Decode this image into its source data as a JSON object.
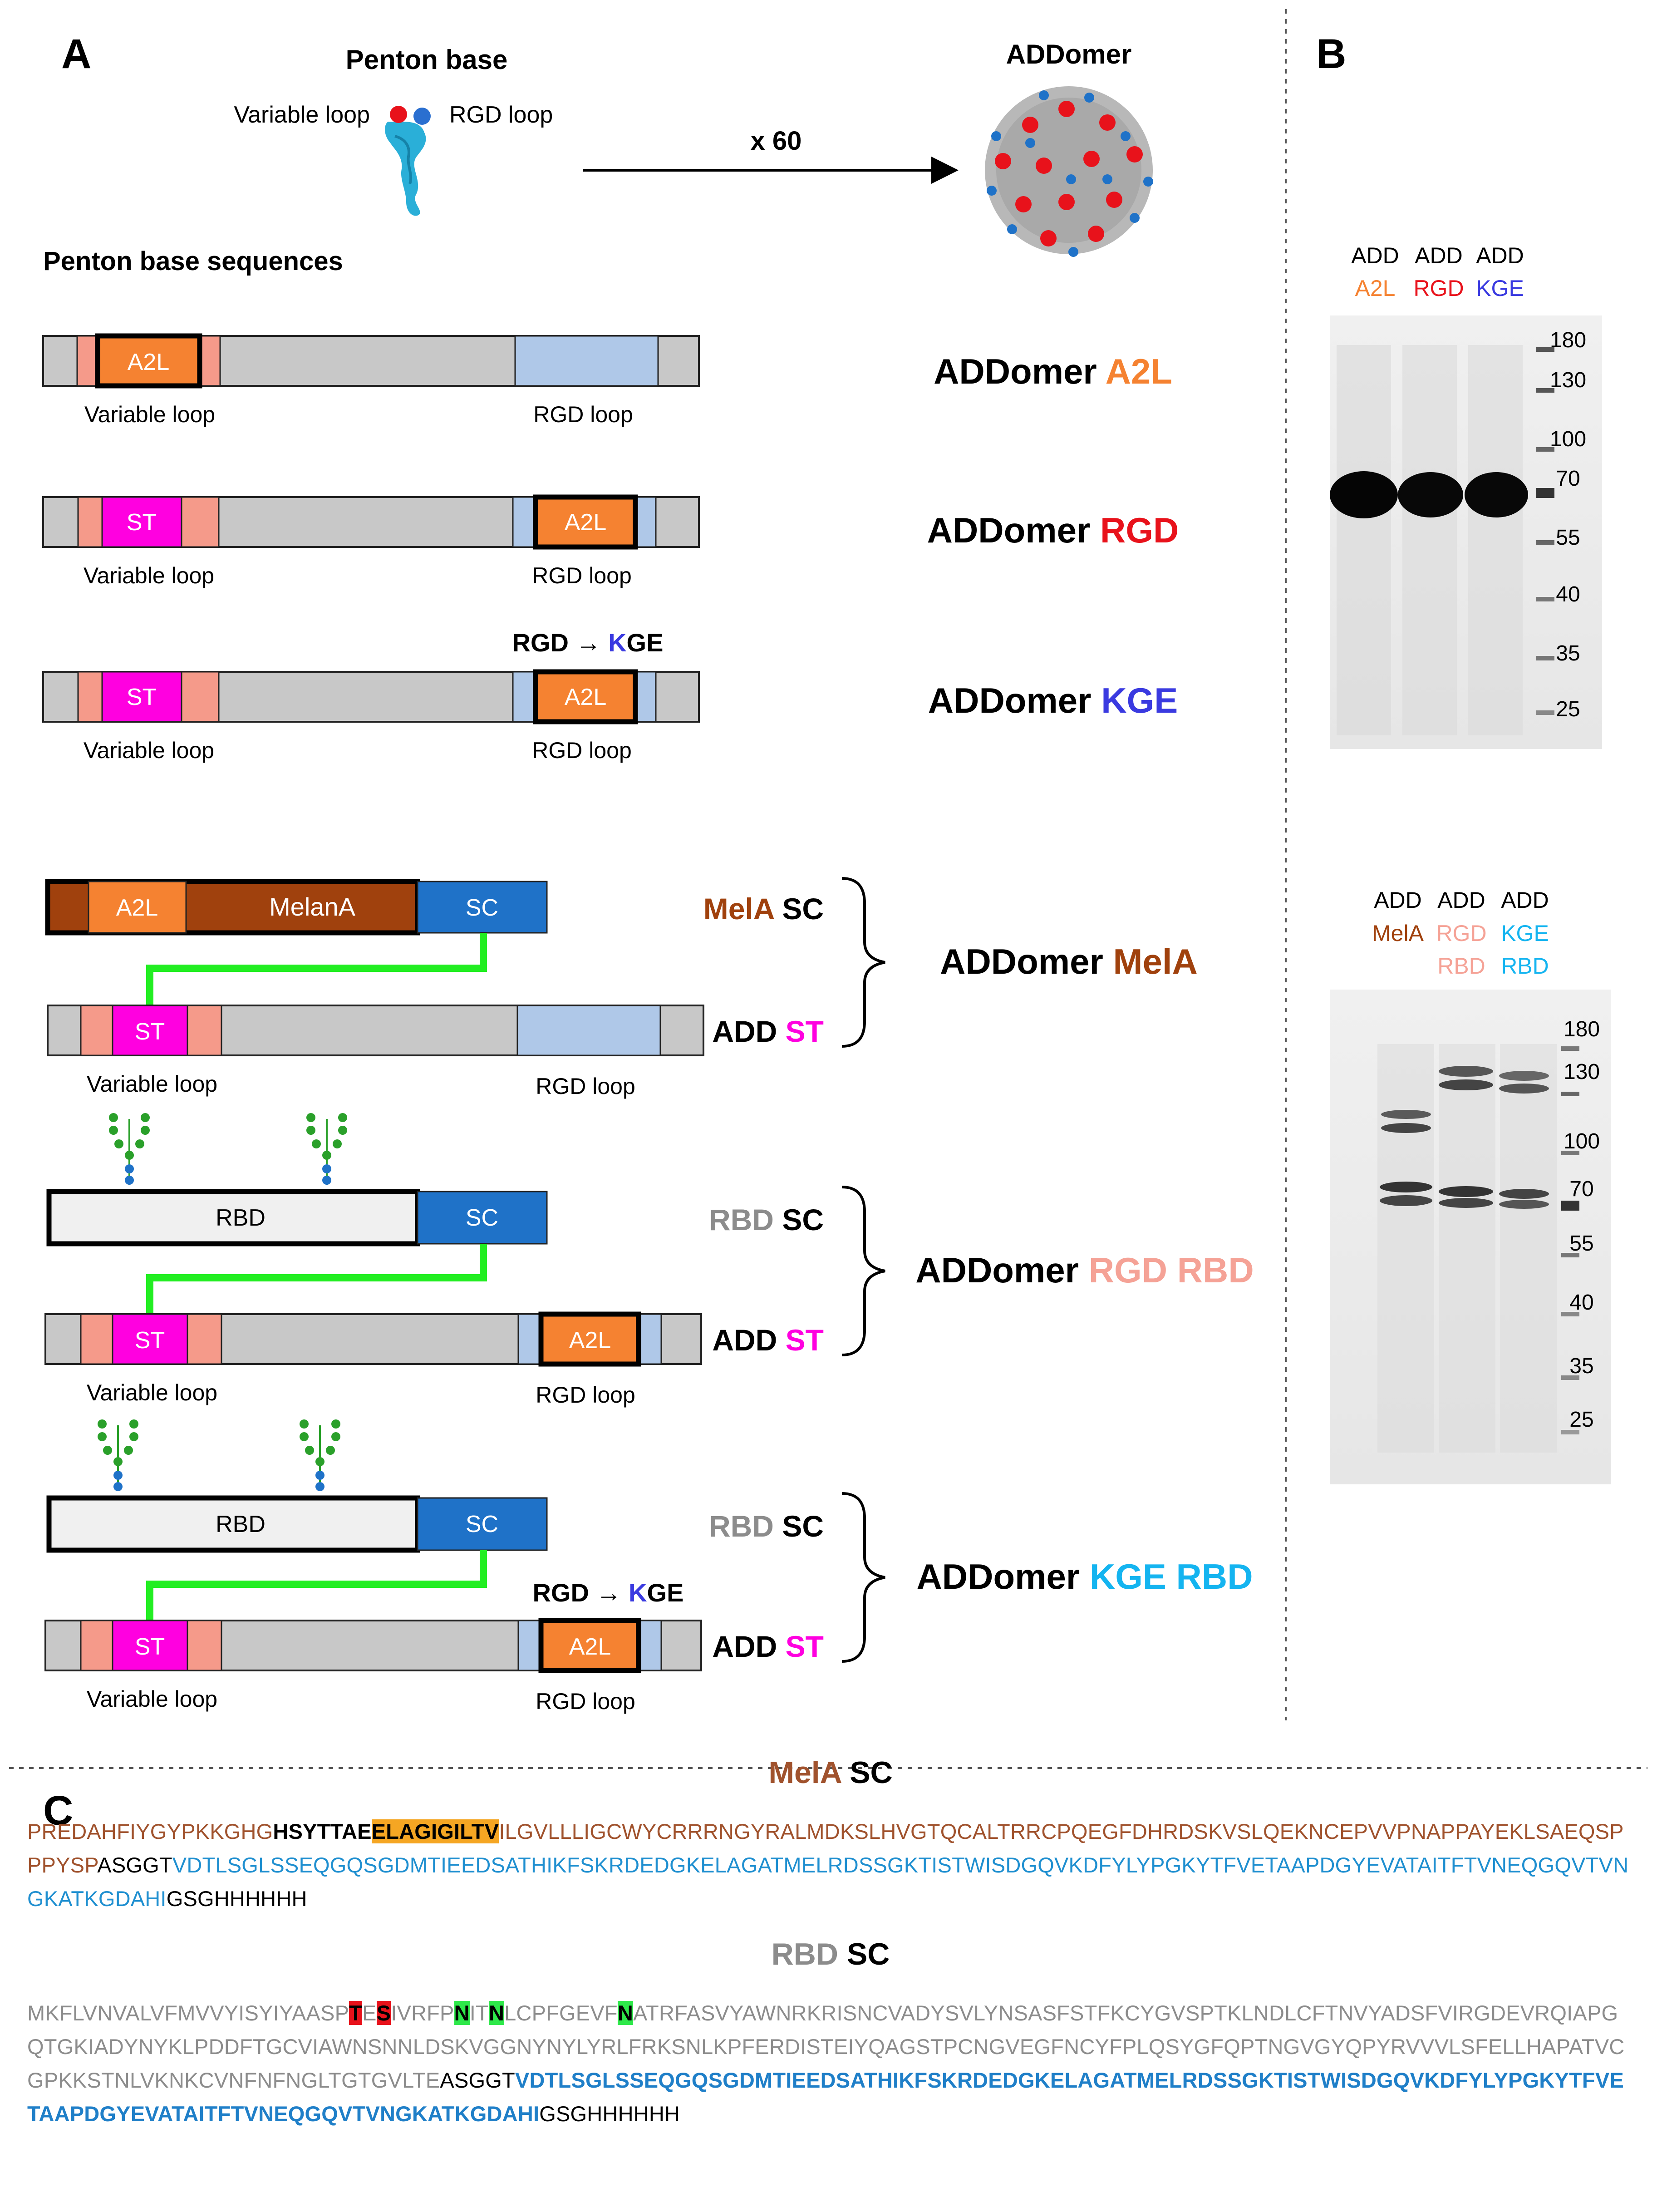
{
  "panel_labels": {
    "a": "A",
    "b": "B",
    "c": "C"
  },
  "colors": {
    "orange": "#F58231",
    "red": "#E8121B",
    "blue_kge": "#3A3AE0",
    "brown": "#A0410D",
    "magenta": "#FF00E0",
    "salmon": "#F59A8A",
    "light_blue": "#AFC8E8",
    "grey_bar": "#C8C8C8",
    "sc_blue": "#1F72C8",
    "green_linker": "#22EE22",
    "pink": "#F5A296",
    "cyan": "#14B4F0",
    "grey_text": "#8C8C8C"
  },
  "header": {
    "penton_title": "Penton base",
    "variable_loop": "Variable loop",
    "rgd_loop": "RGD loop",
    "multiplier": "x 60",
    "addomer_title": "ADDomer",
    "sequences_title": "Penton base sequences"
  },
  "constructs": {
    "var_loop": "Variable loop",
    "rgd_loop": "RGD loop",
    "a2l": "A2L",
    "st": "ST",
    "sc": "SC",
    "melana": "MelanA",
    "rbd": "RBD",
    "mutation_from": "RGD",
    "mutation_arrow": "→",
    "mutation_to_k": "K",
    "mutation_to_ge": "GE",
    "row1_name_a": "ADDomer",
    "row1_name_b": "A2L",
    "row2_name_a": "ADDomer",
    "row2_name_b": "RGD",
    "row3_name_a": "ADDomer",
    "row3_name_b": "KGE",
    "mela_sc_a": "MelA",
    "mela_sc_b": "SC",
    "add_st_a": "ADD",
    "add_st_b": "ST",
    "mela_name_a": "ADDomer",
    "mela_name_b": "MelA",
    "rbd_sc_a": "RBD",
    "rbd_sc_b": "SC",
    "rgdrbd_name_a": "ADDomer",
    "rgdrbd_name_b": "RGD RBD",
    "kgerbd_name_a": "ADDomer",
    "kgerbd_name_b": "KGE RBD"
  },
  "gel_top": {
    "lanes": [
      {
        "line1": "ADD",
        "line2": "A2L"
      },
      {
        "line1": "ADD",
        "line2": "RGD"
      },
      {
        "line1": "ADD",
        "line2": "KGE"
      }
    ],
    "markers": [
      "180",
      "130",
      "100",
      "70",
      "55",
      "40",
      "35",
      "25"
    ]
  },
  "gel_bottom": {
    "lanes": [
      {
        "line1": "ADD",
        "line2": "MelA",
        "line3": ""
      },
      {
        "line1": "ADD",
        "line2": "RGD",
        "line3": "RBD"
      },
      {
        "line1": "ADD",
        "line2": "KGE",
        "line3": "RBD"
      }
    ],
    "markers": [
      "180",
      "130",
      "100",
      "70",
      "55",
      "40",
      "35",
      "25"
    ]
  },
  "sequences": {
    "mela_title_a": "MelA",
    "mela_title_b": "SC",
    "mela": {
      "s1": "PREDAHFIYGYPKKGHG",
      "s2": "HSYTTAE",
      "s3": "ELAGIGILTV",
      "s4": "ILGVLLLIGCWYCRRRNGYRALMDKSLHVGTQCALTRRCPQEGFDHRDSKVSLQEKNCEPVVPNAPPAYEKLSAEQSPPPYSP",
      "s5": "ASGGT",
      "s6": "VDTLSGLSSEQGQSGDMTIEEDSATHIKFSKRDEDGKELAGATMELRDSSGKTISTWISDGQVKDFYLYPGKYTFVETAAPDGYEVATAITFTVNEQGQVTVNGKATKGDAHI",
      "s7": "GSGHHHHHH"
    },
    "rbd_title_a": "RBD",
    "rbd_title_b": "SC",
    "rbd": {
      "s1": "MKFLVNVALVFMVVYISYIYAASP",
      "s2": "T",
      "s3": "E",
      "s4": "S",
      "s5": "IVRFP",
      "s6": "N",
      "s7": "IT",
      "s8": "N",
      "s9": "LCPFGEVF",
      "s10": "N",
      "s11": "ATRFASVYAWNRKRISNCVADYSVLYNSASFSTFKCYGVSPTKLNDLCFTNVYADSFVIRGDEVRQIAPGQTGKIADYNYKLPDDFTGCVIAWNSNNLDSKVGGNYNYLYRLFRKSNLKPFERDISTEIYQAGSTPCNGVEGFNCYFPLQSYGFQPTNGVGYQPYRVVVLSFELLHAPATVCGPKKSTNLVKNKCVNFNFNGLTGTGVLTE",
      "s12": "ASGGT",
      "s13": "VDTLSGLSSEQGQSGDMTIEEDSATHIKFSKRDEDGKELAGATMELRDSSGKTISTWISDGQVKDFYLYPGKYTFVETAAPDGYEVATAITFTVNEQGQVTVNGKATKGDAHI",
      "s14": "GSGHHHHHH"
    }
  }
}
